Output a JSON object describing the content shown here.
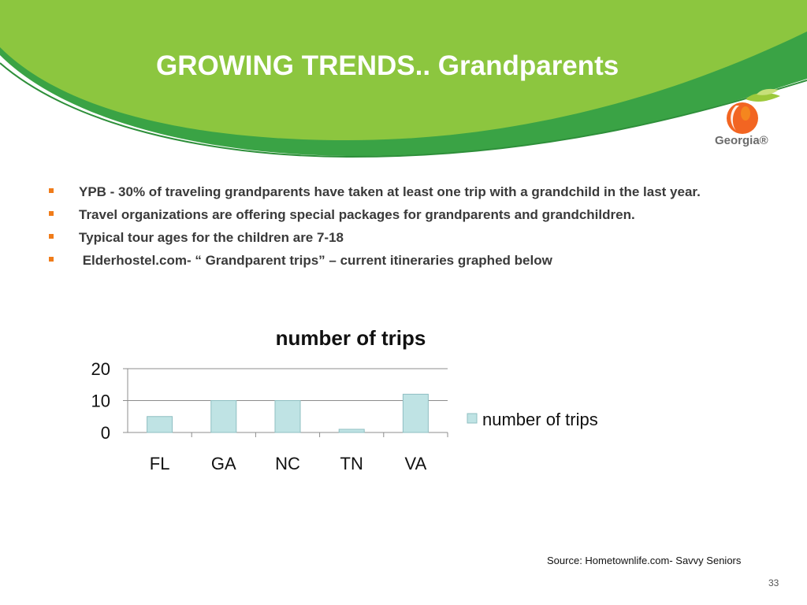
{
  "slide": {
    "title": "GROWING TRENDS.. Grandparents",
    "source": "Source: Hometownlife.com- Savvy Seniors",
    "page_number": "33",
    "bullets": [
      "YPB - 30% of traveling grandparents have taken at least one trip with a grandchild in the last year.",
      "Travel organizations are offering special packages for grandparents and grandchildren.",
      "Typical tour ages for the children are 7-18",
      " Elderhostel.com- “ Grandparent trips” – current itineraries graphed below"
    ]
  },
  "logo": {
    "text": "Georgia®",
    "icon": "georgia-peach-logo"
  },
  "colors": {
    "header_green": "#8cc63f",
    "header_dark_green": "#3aa345",
    "bullet_marker": "#f07c1a",
    "bar_fill": "#bfe3e4",
    "bar_stroke": "#8fbfc2",
    "peach_orange": "#f26522",
    "peach_leaf": "#9cc93b"
  },
  "chart_data": {
    "type": "bar",
    "title": "number of trips",
    "categories": [
      "FL",
      "GA",
      "NC",
      "TN",
      "VA"
    ],
    "series": [
      {
        "name": "number of trips",
        "values": [
          5,
          10,
          10,
          1,
          12
        ]
      }
    ],
    "ylim": [
      0,
      20
    ],
    "yticks": [
      0,
      10,
      20
    ],
    "grid": true,
    "legend": "right"
  }
}
